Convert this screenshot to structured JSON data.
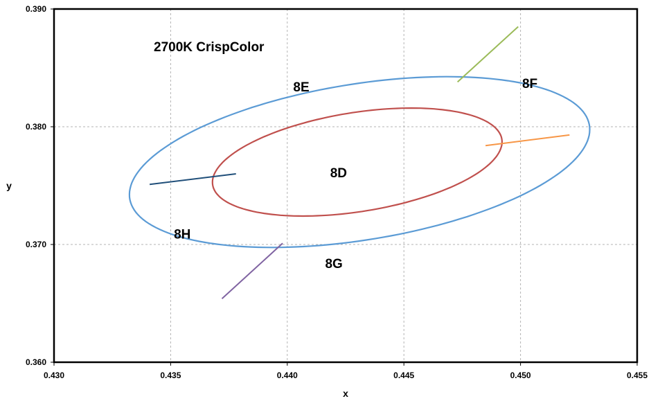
{
  "chart_data": {
    "type": "scatter",
    "title": "2700K CrispColor",
    "xlabel": "x",
    "ylabel": "y",
    "xlim": [
      0.43,
      0.455
    ],
    "ylim": [
      0.36,
      0.39
    ],
    "x_ticks": [
      "0.430",
      "0.435",
      "0.440",
      "0.445",
      "0.450",
      "0.455"
    ],
    "y_ticks": [
      "0.360",
      "0.370",
      "0.380",
      "0.390"
    ],
    "x_tick_values": [
      0.43,
      0.435,
      0.44,
      0.445,
      0.45,
      0.455
    ],
    "y_tick_values": [
      0.36,
      0.37,
      0.38,
      0.39
    ],
    "grid": true,
    "ellipses": [
      {
        "id": "outer",
        "color": "#5b9bd5",
        "center": [
          0.4431,
          0.377
        ],
        "semi_axes": [
          0.0105,
          0.0063
        ],
        "angle_deg": 25.3
      },
      {
        "id": "inner",
        "color": "#c0504d",
        "center": [
          0.443,
          0.377
        ],
        "semi_axes": [
          0.0066,
          0.004
        ],
        "angle_deg": 25.3
      }
    ],
    "dividers": [
      {
        "color": "#1f4e79",
        "from": [
          0.4341,
          0.3751
        ],
        "to": [
          0.4378,
          0.376
        ]
      },
      {
        "color": "#9bbb59",
        "from": [
          0.4473,
          0.3838
        ],
        "to": [
          0.4499,
          0.3885
        ]
      },
      {
        "color": "#f79646",
        "from": [
          0.4485,
          0.3784
        ],
        "to": [
          0.4521,
          0.3793
        ]
      },
      {
        "color": "#8064a2",
        "from": [
          0.4398,
          0.3701
        ],
        "to": [
          0.4372,
          0.3654
        ]
      }
    ],
    "region_labels": [
      {
        "text": "8D",
        "x": 0.4422,
        "y": 0.3757
      },
      {
        "text": "8E",
        "x": 0.4406,
        "y": 0.383
      },
      {
        "text": "8F",
        "x": 0.4504,
        "y": 0.3833
      },
      {
        "text": "8G",
        "x": 0.442,
        "y": 0.368
      },
      {
        "text": "8H",
        "x": 0.4355,
        "y": 0.3705
      }
    ]
  }
}
